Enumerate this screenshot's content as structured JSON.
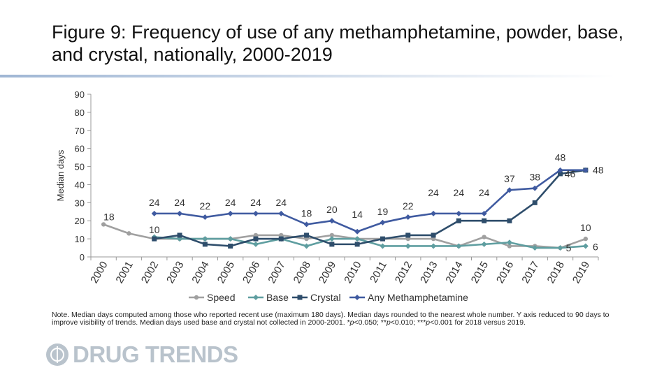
{
  "title": "Figure 9: Frequency of use of any methamphetamine, powder, base, and crystal, nationally, 2000-2019",
  "note": {
    "text": "Note. Median days computed among those who reported recent use (maximum 180 days). Median days rounded to the nearest whole number. Y axis reduced to 90 days to improve visibility of trends. Median days used base and crystal not collected in 2000-2001.",
    "sig1_p": "p",
    "sig1_val": "<0.050; **",
    "sig2_p": "p",
    "sig2_val": "<0.010; ***",
    "sig3_p": "p",
    "sig3_val": "<0.001 for 2018 versus 2019."
  },
  "logo": {
    "text": "DRUG TRENDS"
  },
  "chart_data": {
    "type": "line",
    "ylabel": "Median days",
    "xlabel": "",
    "ylim": [
      0,
      90
    ],
    "yticks": [
      0,
      10,
      20,
      30,
      40,
      50,
      60,
      70,
      80,
      90
    ],
    "grid": false,
    "legend_position": "bottom",
    "x": [
      "2000",
      "2001",
      "2002",
      "2003",
      "2004",
      "2005",
      "2006",
      "2007",
      "2008",
      "2009",
      "2010",
      "2011",
      "2012",
      "2013",
      "2014",
      "2015",
      "2016",
      "2017",
      "2018",
      "2019"
    ],
    "series": [
      {
        "name": "Speed",
        "color": "#a0a0a0",
        "marker": "circle",
        "values": [
          18,
          13,
          10,
          10,
          10,
          10,
          12,
          12,
          10,
          12,
          10,
          10,
          10,
          10,
          6,
          11,
          6,
          6,
          5,
          10
        ]
      },
      {
        "name": "Base",
        "color": "#5f9ea0",
        "marker": "diamond",
        "values": [
          null,
          null,
          11,
          10,
          10,
          10,
          7,
          10,
          6,
          10,
          10,
          6,
          6,
          6,
          6,
          7,
          8,
          5,
          5,
          6
        ]
      },
      {
        "name": "Crystal",
        "color": "#2e4d6b",
        "marker": "square",
        "values": [
          null,
          null,
          10,
          12,
          7,
          6,
          10,
          10,
          12,
          7,
          7,
          10,
          12,
          12,
          20,
          20,
          20,
          30,
          46,
          48
        ]
      },
      {
        "name": "Any Methamphetamine",
        "color": "#3f5aa0",
        "marker": "diamond",
        "values": [
          null,
          null,
          24,
          24,
          22,
          24,
          24,
          24,
          18,
          20,
          14,
          19,
          22,
          24,
          24,
          24,
          37,
          38,
          48,
          48
        ]
      }
    ],
    "annotations": [
      {
        "text": "18",
        "x": "2000",
        "y": 18
      },
      {
        "text": "10",
        "x": "2002",
        "y": 10
      },
      {
        "text": "24",
        "x": "2002",
        "y": 24
      },
      {
        "text": "24",
        "x": "2003",
        "y": 24
      },
      {
        "text": "22",
        "x": "2004",
        "y": 22
      },
      {
        "text": "24",
        "x": "2005",
        "y": 24
      },
      {
        "text": "24",
        "x": "2006",
        "y": 24
      },
      {
        "text": "24",
        "x": "2007",
        "y": 24
      },
      {
        "text": "18",
        "x": "2008",
        "y": 18
      },
      {
        "text": "20",
        "x": "2009",
        "y": 20
      },
      {
        "text": "14",
        "x": "2010",
        "y": 14
      },
      {
        "text": "19",
        "x": "2011",
        "y": 19
      },
      {
        "text": "22",
        "x": "2012",
        "y": 22
      },
      {
        "text": "24",
        "x": "2013",
        "y": 24
      },
      {
        "text": "24",
        "x": "2014",
        "y": 24
      },
      {
        "text": "24",
        "x": "2015",
        "y": 24
      },
      {
        "text": "37",
        "x": "2016",
        "y": 37
      },
      {
        "text": "38",
        "x": "2017",
        "y": 38
      },
      {
        "text": "48",
        "x": "2018",
        "y": 48
      },
      {
        "text": "46",
        "x": "2018",
        "y": 46
      },
      {
        "text": "48",
        "x": "2019",
        "y": 48
      },
      {
        "text": "10",
        "x": "2019",
        "y": 10
      },
      {
        "text": "5",
        "x": "2018",
        "y": 5
      },
      {
        "text": "6",
        "x": "2019",
        "y": 6
      }
    ]
  }
}
